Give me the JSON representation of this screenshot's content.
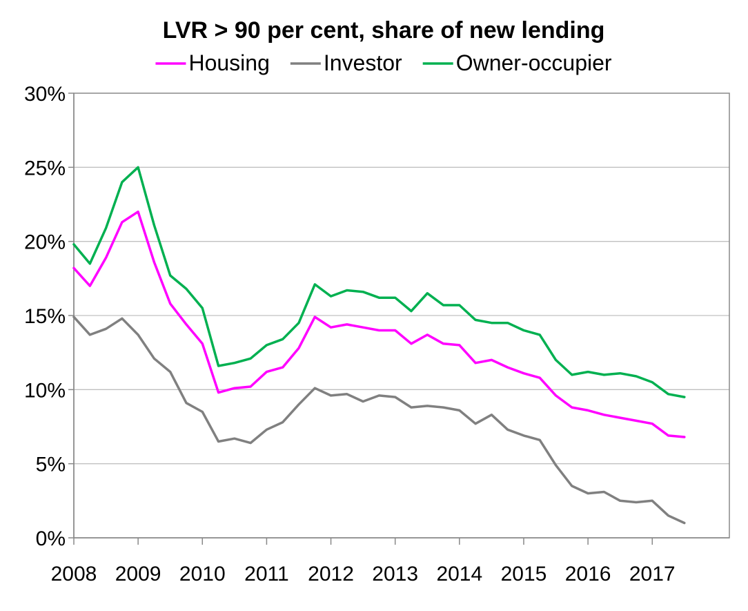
{
  "chart_data": {
    "type": "line",
    "title": "LVR > 90 per cent, share of new lending",
    "xlabel": "",
    "ylabel": "",
    "xlim": [
      2008,
      2018.2
    ],
    "ylim": [
      0,
      30
    ],
    "y_ticks": [
      0,
      5,
      10,
      15,
      20,
      25,
      30
    ],
    "y_tick_labels": [
      "0%",
      "5%",
      "10%",
      "15%",
      "20%",
      "25%",
      "30%"
    ],
    "x_ticks": [
      2008,
      2009,
      2010,
      2011,
      2012,
      2013,
      2014,
      2015,
      2016,
      2017
    ],
    "x_tick_labels": [
      "2008",
      "2009",
      "2010",
      "2011",
      "2012",
      "2013",
      "2014",
      "2015",
      "2016",
      "2017"
    ],
    "grid": "horizontal",
    "legend_position": "top",
    "x": [
      2008.0,
      2008.25,
      2008.5,
      2008.75,
      2009.0,
      2009.25,
      2009.5,
      2009.75,
      2010.0,
      2010.25,
      2010.5,
      2010.75,
      2011.0,
      2011.25,
      2011.5,
      2011.75,
      2012.0,
      2012.25,
      2012.5,
      2012.75,
      2013.0,
      2013.25,
      2013.5,
      2013.75,
      2014.0,
      2014.25,
      2014.5,
      2014.75,
      2015.0,
      2015.25,
      2015.5,
      2015.75,
      2016.0,
      2016.25,
      2016.5,
      2016.75,
      2017.0,
      2017.25,
      2017.5
    ],
    "series": [
      {
        "name": "Housing",
        "color": "#ff00ff",
        "values": [
          18.2,
          17.0,
          18.9,
          21.3,
          22.0,
          18.6,
          15.8,
          14.4,
          13.1,
          9.8,
          10.1,
          10.2,
          11.2,
          11.5,
          12.8,
          14.9,
          14.2,
          14.4,
          14.2,
          14.0,
          14.0,
          13.1,
          13.7,
          13.1,
          13.0,
          11.8,
          12.0,
          11.5,
          11.1,
          10.8,
          9.6,
          8.8,
          8.6,
          8.3,
          8.1,
          7.9,
          7.7,
          6.9,
          6.8
        ]
      },
      {
        "name": "Investor",
        "color": "#808080",
        "values": [
          14.9,
          13.7,
          14.1,
          14.8,
          13.7,
          12.1,
          11.2,
          9.1,
          8.5,
          6.5,
          6.7,
          6.4,
          7.3,
          7.8,
          9.0,
          10.1,
          9.6,
          9.7,
          9.2,
          9.6,
          9.5,
          8.8,
          8.9,
          8.8,
          8.6,
          7.7,
          8.3,
          7.3,
          6.9,
          6.6,
          4.9,
          3.5,
          3.0,
          3.1,
          2.5,
          2.4,
          2.5,
          1.5,
          1.0
        ]
      },
      {
        "name": "Owner-occupier",
        "color": "#00b050",
        "values": [
          19.8,
          18.5,
          20.9,
          24.0,
          25.0,
          21.1,
          17.7,
          16.8,
          15.5,
          11.6,
          11.8,
          12.1,
          13.0,
          13.4,
          14.5,
          17.1,
          16.3,
          16.7,
          16.6,
          16.2,
          16.2,
          15.3,
          16.5,
          15.7,
          15.7,
          14.7,
          14.5,
          14.5,
          14.0,
          13.7,
          12.0,
          11.0,
          11.2,
          11.0,
          11.1,
          10.9,
          10.5,
          9.7,
          9.5
        ]
      }
    ]
  }
}
